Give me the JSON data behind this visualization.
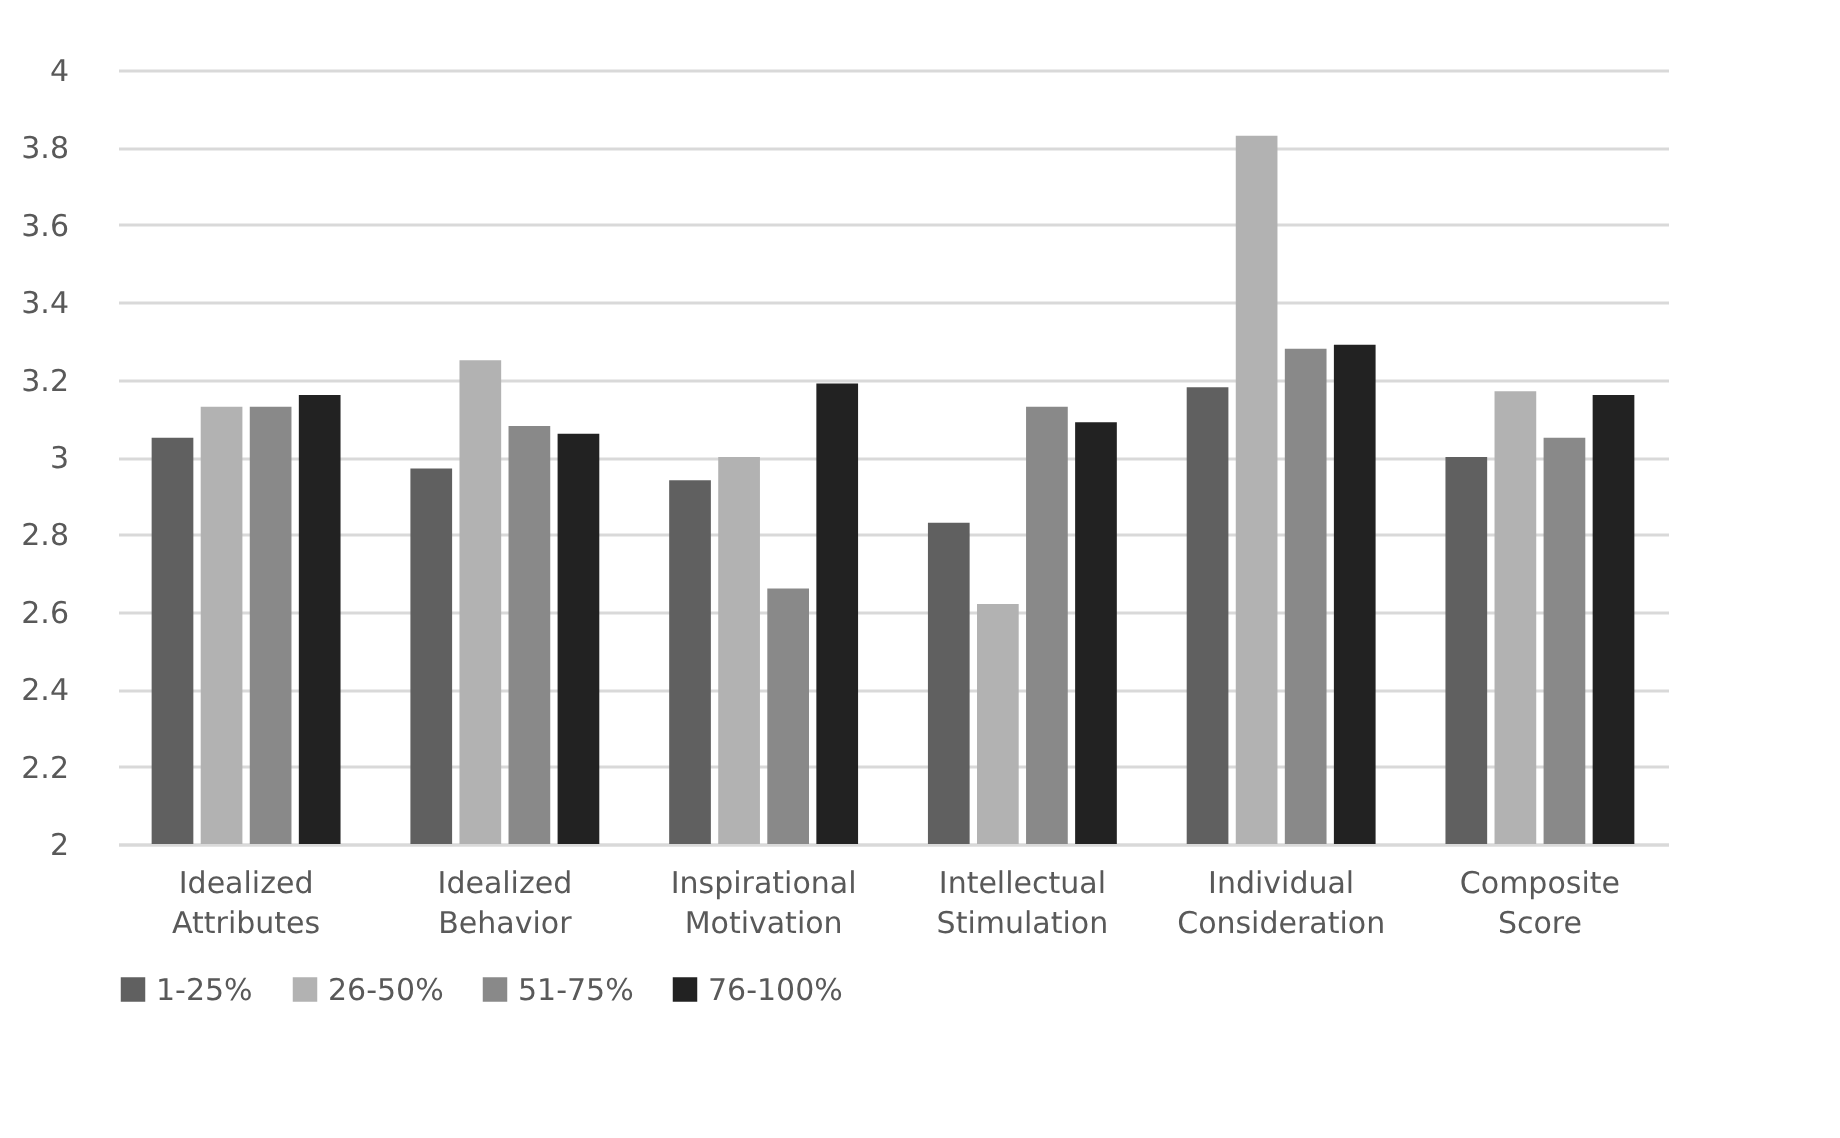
{
  "chart_data": {
    "type": "bar",
    "categories": [
      "Idealized Attributes",
      "Idealized Behavior",
      "Inspirational Motivation",
      "Intellectual Stimulation",
      "Individual Consideration",
      "Composite Score"
    ],
    "series": [
      {
        "name": "1-25%",
        "color": "#606060",
        "values": [
          3.05,
          2.97,
          2.94,
          2.83,
          3.18,
          3.0
        ]
      },
      {
        "name": "26-50%",
        "color": "#b2b2b2",
        "values": [
          3.13,
          3.25,
          3.0,
          2.62,
          3.83,
          3.17
        ]
      },
      {
        "name": "51-75%",
        "color": "#898989",
        "values": [
          3.13,
          3.08,
          2.66,
          3.13,
          3.28,
          3.05
        ]
      },
      {
        "name": "76-100%",
        "color": "#222222",
        "values": [
          3.16,
          3.06,
          3.19,
          3.09,
          3.29,
          3.16
        ]
      }
    ],
    "ylim": [
      2,
      4
    ],
    "yticks": [
      2,
      2.2,
      2.4,
      2.6,
      2.8,
      3,
      3.2,
      3.4,
      3.6,
      3.8,
      4
    ],
    "grid": "y",
    "legend": "bottom"
  }
}
